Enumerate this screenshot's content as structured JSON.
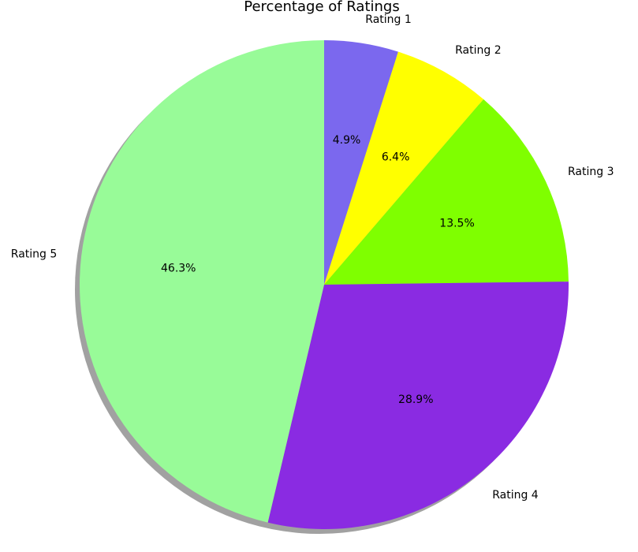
{
  "chart_data": {
    "type": "pie",
    "title": "Percentage of Ratings",
    "labels": [
      "Rating 1",
      "Rating 2",
      "Rating 3",
      "Rating 4",
      "Rating 5"
    ],
    "values": [
      4.9,
      6.4,
      13.5,
      28.9,
      46.3
    ],
    "value_labels": [
      "4.9%",
      "6.4%",
      "13.5%",
      "28.9%",
      "46.3%"
    ],
    "colors": [
      "#7B68EE",
      "#FFFF00",
      "#7FFF00",
      "#8A2BE2",
      "#98FB98"
    ],
    "start_angle_deg": 90,
    "direction": "clockwise",
    "shadow": true
  }
}
